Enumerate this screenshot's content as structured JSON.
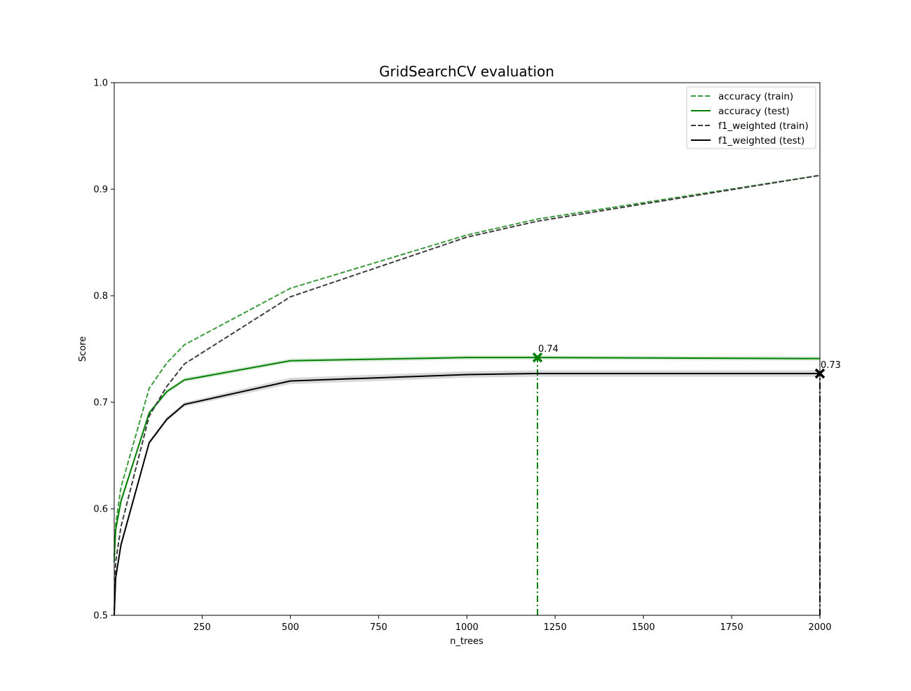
{
  "chart_data": {
    "type": "line",
    "title": "GridSearchCV evaluation",
    "xlabel": "n_trees",
    "ylabel": "Score",
    "xlim": [
      1,
      2000
    ],
    "ylim": [
      0.5,
      1.0
    ],
    "x_ticks": [
      250,
      500,
      750,
      1000,
      1250,
      1500,
      1750,
      2000
    ],
    "y_ticks": [
      0.5,
      0.6,
      0.7,
      0.8,
      0.9,
      1.0
    ],
    "x_tick_labels": [
      "250",
      "500",
      "750",
      "1000",
      "1250",
      "1500",
      "1750",
      "2000"
    ],
    "y_tick_labels": [
      "0.5",
      "0.6",
      "0.7",
      "0.8",
      "0.9",
      "1.0"
    ],
    "grid": false,
    "legend_position": "top-right",
    "x": [
      1,
      5,
      20,
      100,
      150,
      200,
      500,
      1000,
      1200,
      2000
    ],
    "series": [
      {
        "name": "accuracy (train)",
        "color": "#3a9b3a",
        "style": "dashed",
        "values": [
          0.55,
          0.585,
          0.62,
          0.713,
          0.737,
          0.754,
          0.807,
          0.857,
          0.872,
          0.913
        ],
        "std": [
          0.0,
          0.0,
          0.0,
          0.0,
          0.0,
          0.0,
          0.0,
          0.0,
          0.0,
          0.0
        ]
      },
      {
        "name": "accuracy (test)",
        "color": "#008000",
        "style": "solid",
        "values": [
          0.555,
          0.58,
          0.607,
          0.69,
          0.71,
          0.721,
          0.739,
          0.742,
          0.742,
          0.741
        ],
        "std": [
          0.003,
          0.003,
          0.003,
          0.002,
          0.002,
          0.002,
          0.002,
          0.002,
          0.002,
          0.002
        ]
      },
      {
        "name": "f1_weighted (train)",
        "color": "#3d3d3d",
        "style": "dashed",
        "values": [
          0.505,
          0.55,
          0.583,
          0.687,
          0.715,
          0.736,
          0.799,
          0.855,
          0.87,
          0.913
        ],
        "std": [
          0.0,
          0.0,
          0.0,
          0.0,
          0.0,
          0.0,
          0.0,
          0.0,
          0.0,
          0.0
        ]
      },
      {
        "name": "f1_weighted (test)",
        "color": "#000000",
        "style": "solid",
        "values": [
          0.5,
          0.535,
          0.566,
          0.662,
          0.684,
          0.698,
          0.72,
          0.726,
          0.727,
          0.727
        ],
        "std": [
          0.003,
          0.003,
          0.003,
          0.002,
          0.002,
          0.002,
          0.003,
          0.003,
          0.003,
          0.003
        ]
      }
    ],
    "best_markers": [
      {
        "series": "accuracy (test)",
        "x": 1200,
        "y": 0.742,
        "label": "0.74",
        "color": "#008000",
        "marker": "x"
      },
      {
        "series": "f1_weighted (test)",
        "x": 2000,
        "y": 0.727,
        "label": "0.73",
        "color": "#000000",
        "marker": "x"
      }
    ]
  }
}
